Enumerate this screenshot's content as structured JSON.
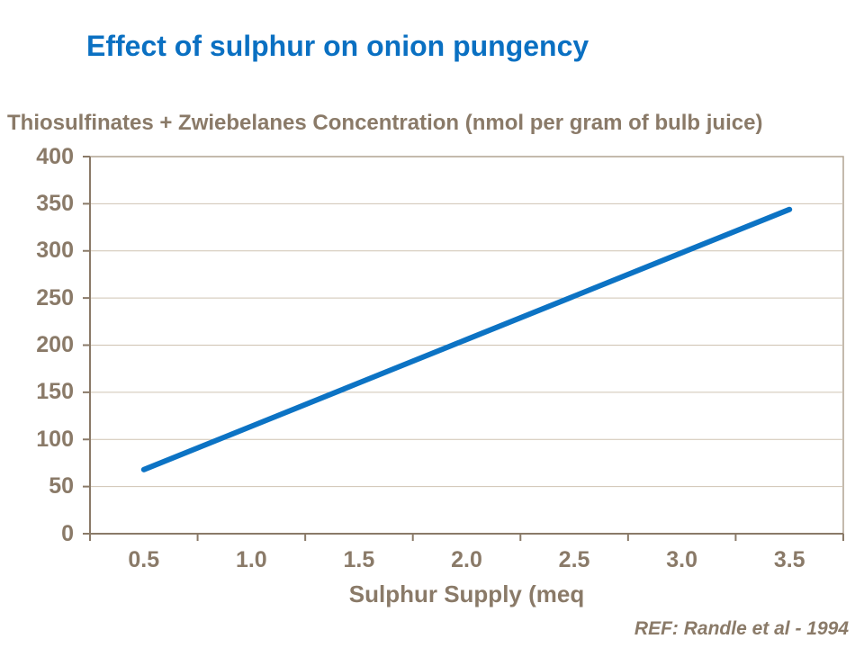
{
  "slide": {
    "title": "Effect of sulphur on onion pungency",
    "footer_reference": "REF: Randle et al - 1994"
  },
  "chart_data": {
    "type": "line",
    "title": "Effect of sulphur on onion pungency",
    "y_axis_title": "Thiosulfinates + Zwiebelanes Concentration (nmol per gram of bulb juice)",
    "x_axis_title": "Sulphur Supply (meq",
    "categories": [
      "0.5",
      "1.0",
      "1.5",
      "2.0",
      "2.5",
      "3.0",
      "3.5"
    ],
    "values": [
      68,
      114,
      160,
      206,
      252,
      298,
      344
    ],
    "ylim": [
      0,
      400
    ],
    "yticks": [
      0,
      50,
      100,
      150,
      200,
      250,
      300,
      350,
      400
    ],
    "grid": "horizontal-gridlines",
    "legend": "none",
    "annotations": [
      "REF: Randle et al - 1994"
    ]
  },
  "colors": {
    "title": "#0a70c2",
    "series_line": "#0c73c4",
    "axis_text": "#8a7a68",
    "axis_line": "#8a7a68",
    "gridline": "#cfc3b2",
    "plot_border": "#b0a392",
    "background": "#ffffff"
  }
}
